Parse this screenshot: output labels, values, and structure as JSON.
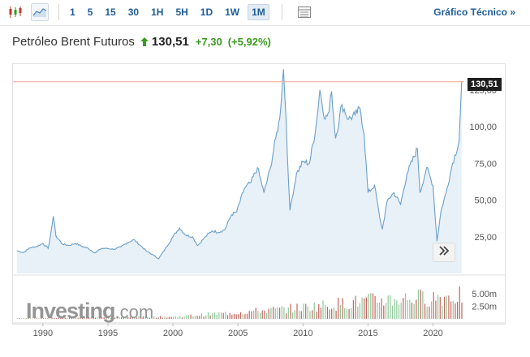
{
  "toolbar": {
    "icons": [
      "candlestick-icon",
      "area-chart-icon",
      "table-icon"
    ],
    "timeframes": [
      "1",
      "5",
      "15",
      "30",
      "1H",
      "5H",
      "1D",
      "1W",
      "1M"
    ],
    "active_timeframe": "1M",
    "technical_link": "Gráfico Técnico »"
  },
  "instrument": {
    "name": "Petróleo Brent Futuros",
    "price": "130,51",
    "change": "+7,30",
    "change_pct": "(+5,92%)"
  },
  "watermark": {
    "brand": "Investing",
    "suffix": ".com"
  },
  "colors": {
    "line": "#6a9fcc",
    "area": "#e8f0f8",
    "last_price_line": "#f2a39a",
    "volume_up": "#8ec89a",
    "volume_down": "#c8645c",
    "accent": "#1e5c99",
    "positive": "#3a9a1f"
  },
  "chart_data": {
    "type": "area",
    "title": "Petróleo Brent Futuros",
    "price": {
      "points": [
        [
          1988.0,
          15.5
        ],
        [
          1988.5,
          14.2
        ],
        [
          1989.0,
          17.5
        ],
        [
          1989.5,
          18.3
        ],
        [
          1990.0,
          20.5
        ],
        [
          1990.4,
          17.0
        ],
        [
          1990.6,
          27.0
        ],
        [
          1990.8,
          39.0
        ],
        [
          1991.0,
          25.5
        ],
        [
          1991.5,
          20.0
        ],
        [
          1992.0,
          19.0
        ],
        [
          1992.5,
          20.5
        ],
        [
          1993.0,
          18.5
        ],
        [
          1993.5,
          17.0
        ],
        [
          1994.0,
          14.0
        ],
        [
          1994.5,
          17.0
        ],
        [
          1995.0,
          17.0
        ],
        [
          1995.5,
          16.5
        ],
        [
          1996.0,
          18.0
        ],
        [
          1996.5,
          21.0
        ],
        [
          1997.0,
          23.0
        ],
        [
          1997.5,
          19.0
        ],
        [
          1998.0,
          15.0
        ],
        [
          1998.5,
          12.5
        ],
        [
          1998.9,
          10.0
        ],
        [
          1999.5,
          18.0
        ],
        [
          2000.0,
          25.0
        ],
        [
          2000.5,
          31.0
        ],
        [
          2001.0,
          26.0
        ],
        [
          2001.5,
          25.0
        ],
        [
          2001.9,
          19.0
        ],
        [
          2002.5,
          25.0
        ],
        [
          2003.0,
          29.0
        ],
        [
          2003.5,
          28.0
        ],
        [
          2004.0,
          30.0
        ],
        [
          2004.5,
          40.0
        ],
        [
          2004.9,
          42.0
        ],
        [
          2005.5,
          58.0
        ],
        [
          2006.0,
          62.0
        ],
        [
          2006.5,
          72.0
        ],
        [
          2007.0,
          55.0
        ],
        [
          2007.5,
          72.0
        ],
        [
          2007.9,
          92.0
        ],
        [
          2008.2,
          105.0
        ],
        [
          2008.5,
          139.0
        ],
        [
          2008.7,
          105.0
        ],
        [
          2008.9,
          60.0
        ],
        [
          2009.0,
          43.0
        ],
        [
          2009.5,
          68.0
        ],
        [
          2010.0,
          76.0
        ],
        [
          2010.5,
          75.0
        ],
        [
          2011.0,
          100.0
        ],
        [
          2011.3,
          125.0
        ],
        [
          2011.7,
          105.0
        ],
        [
          2012.0,
          110.0
        ],
        [
          2012.2,
          124.0
        ],
        [
          2012.5,
          92.0
        ],
        [
          2013.0,
          115.0
        ],
        [
          2013.5,
          105.0
        ],
        [
          2014.0,
          108.0
        ],
        [
          2014.4,
          112.0
        ],
        [
          2014.7,
          95.0
        ],
        [
          2015.0,
          55.0
        ],
        [
          2015.5,
          60.0
        ],
        [
          2015.9,
          38.0
        ],
        [
          2016.1,
          30.0
        ],
        [
          2016.5,
          50.0
        ],
        [
          2017.0,
          55.0
        ],
        [
          2017.5,
          47.0
        ],
        [
          2018.0,
          68.0
        ],
        [
          2018.8,
          85.0
        ],
        [
          2019.0,
          55.0
        ],
        [
          2019.5,
          72.0
        ],
        [
          2020.0,
          60.0
        ],
        [
          2020.3,
          22.0
        ],
        [
          2020.6,
          42.0
        ],
        [
          2021.0,
          55.0
        ],
        [
          2021.5,
          75.0
        ],
        [
          2022.0,
          90.0
        ],
        [
          2022.2,
          130.51
        ]
      ],
      "last": 130.51
    },
    "volume": {
      "scale_max": 8000000,
      "bar_years": [
        1988.0,
        2022.2
      ],
      "bar_width_years": 0.1667
    },
    "x_axis": {
      "ticks": [
        1990,
        1995,
        2000,
        2005,
        2010,
        2015,
        2020
      ],
      "range": [
        1987.7,
        2022.4
      ]
    },
    "y_axis": {
      "ticks": [
        "25,00",
        "50,00",
        "75,00",
        "100,00",
        "125,00"
      ],
      "tick_values": [
        25,
        50,
        75,
        100,
        125
      ],
      "range": [
        0,
        142
      ]
    },
    "volume_axis": {
      "ticks": [
        "2.50m",
        "5.00m"
      ],
      "tick_values": [
        2500000,
        5000000
      ]
    },
    "last_price_label": "130,51",
    "grid": false,
    "legend": "none"
  }
}
